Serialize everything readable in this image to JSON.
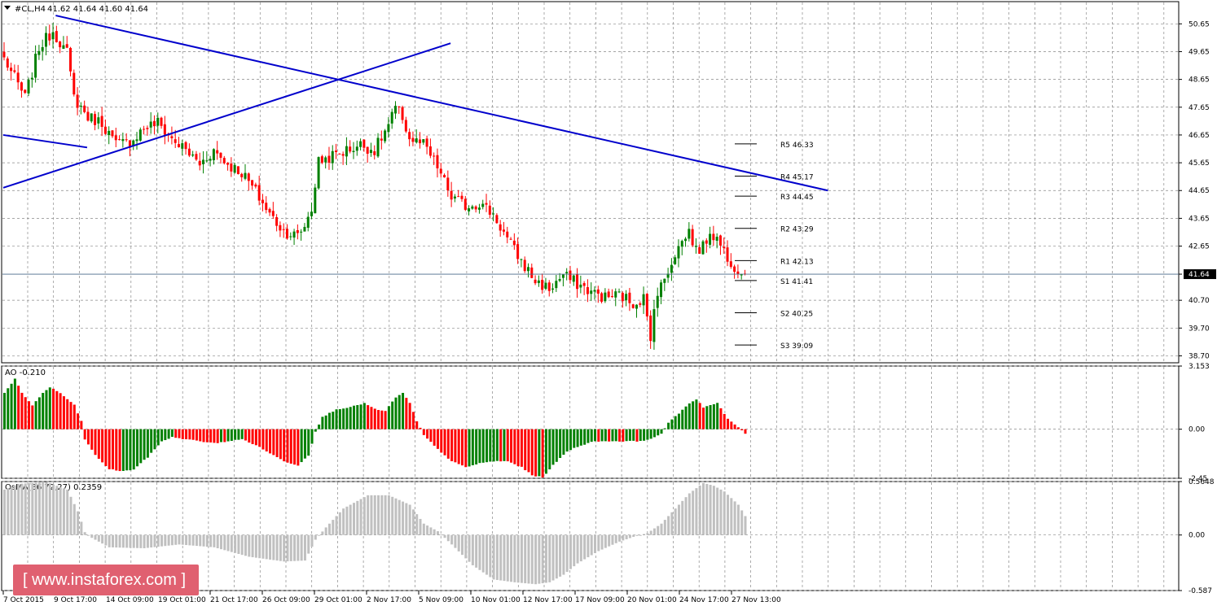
{
  "header": {
    "symbol": "#CL,H4",
    "ohlc": "41.62 41.64 41.60 41.64"
  },
  "watermark": "[ www.instaforex.com ]",
  "colors": {
    "bull": "#008000",
    "bear": "#ff0000",
    "trend": "#0000cc",
    "osma": "#c0c0c0",
    "grid": "#888888"
  },
  "chart_data": [
    {
      "type": "candlestick",
      "title": "#CL,H4",
      "ylim": [
        38.45,
        51.45
      ],
      "y_ticks": [
        "50.65",
        "49.65",
        "48.65",
        "47.65",
        "46.65",
        "45.65",
        "44.65",
        "43.65",
        "42.65",
        "41.64",
        "40.70",
        "39.70",
        "38.70"
      ],
      "current_price": "41.64",
      "x_labels": [
        "7 Oct 2015",
        "9 Oct 17:00",
        "14 Oct 09:00",
        "19 Oct 01:00",
        "21 Oct 17:00",
        "26 Oct 09:00",
        "29 Oct 01:00",
        "2 Nov 17:00",
        "5 Nov 09:00",
        "10 Nov 01:00",
        "12 Nov 17:00",
        "17 Nov 09:00",
        "20 Nov 01:00",
        "24 Nov 17:00",
        "27 Nov 13:00"
      ],
      "close_path": [
        [
          0,
          49.4
        ],
        [
          6,
          48.0
        ],
        [
          10,
          49.8
        ],
        [
          14,
          50.4
        ],
        [
          18,
          49.6
        ],
        [
          20,
          48.0
        ],
        [
          24,
          47.3
        ],
        [
          28,
          47.1
        ],
        [
          32,
          46.3
        ],
        [
          36,
          46.4
        ],
        [
          40,
          46.9
        ],
        [
          44,
          47.1
        ],
        [
          48,
          46.5
        ],
        [
          52,
          46.1
        ],
        [
          56,
          45.6
        ],
        [
          60,
          46.1
        ],
        [
          64,
          45.6
        ],
        [
          68,
          45.3
        ],
        [
          72,
          44.6
        ],
        [
          76,
          43.8
        ],
        [
          80,
          43.2
        ],
        [
          84,
          43.0
        ],
        [
          86,
          43.4
        ],
        [
          88,
          44.0
        ],
        [
          90,
          45.7
        ],
        [
          94,
          45.9
        ],
        [
          98,
          46.1
        ],
        [
          102,
          46.3
        ],
        [
          106,
          46.1
        ],
        [
          110,
          47.0
        ],
        [
          112,
          47.6
        ],
        [
          114,
          47.3
        ],
        [
          116,
          46.5
        ],
        [
          120,
          46.3
        ],
        [
          124,
          45.5
        ],
        [
          128,
          44.4
        ],
        [
          132,
          44.1
        ],
        [
          136,
          44.2
        ],
        [
          140,
          43.8
        ],
        [
          144,
          42.9
        ],
        [
          148,
          42.1
        ],
        [
          152,
          41.4
        ],
        [
          156,
          41.1
        ],
        [
          160,
          41.6
        ],
        [
          164,
          41.3
        ],
        [
          168,
          41.0
        ],
        [
          172,
          40.8
        ],
        [
          176,
          40.9
        ],
        [
          180,
          40.6
        ],
        [
          183,
          40.8
        ],
        [
          185,
          39.2
        ],
        [
          186,
          40.6
        ],
        [
          188,
          41.2
        ],
        [
          190,
          41.8
        ],
        [
          192,
          42.4
        ],
        [
          194,
          42.8
        ],
        [
          196,
          43.2
        ],
        [
          198,
          42.5
        ],
        [
          200,
          42.6
        ],
        [
          202,
          43.2
        ],
        [
          204,
          42.9
        ],
        [
          206,
          42.5
        ],
        [
          208,
          42.1
        ],
        [
          210,
          41.8
        ],
        [
          211,
          41.64
        ]
      ],
      "levels": [
        {
          "label": "R5",
          "value": "46.33"
        },
        {
          "label": "R4",
          "value": "45.17"
        },
        {
          "label": "R3",
          "value": "44.45"
        },
        {
          "label": "R2",
          "value": "43.29"
        },
        {
          "label": "R1",
          "value": "42.13"
        },
        {
          "label": "S1",
          "value": "41.41"
        },
        {
          "label": "S2",
          "value": "40.25"
        },
        {
          "label": "S3",
          "value": "39.09"
        }
      ],
      "trendlines": [
        {
          "from": [
            15,
            50.95
          ],
          "to": [
            236,
            44.65
          ]
        },
        {
          "from": [
            0,
            44.75
          ],
          "to": [
            128,
            49.95
          ]
        },
        {
          "from": [
            0,
            46.65
          ],
          "to": [
            24,
            46.2
          ]
        }
      ]
    },
    {
      "type": "bar",
      "title": "AO -0.210",
      "ylim": [
        -2.45,
        3.153
      ],
      "y_ticks": [
        "3.153",
        "0.00",
        "-2.45"
      ],
      "path": [
        [
          0,
          1.8
        ],
        [
          3,
          2.5
        ],
        [
          5,
          1.8
        ],
        [
          8,
          1.2
        ],
        [
          11,
          1.8
        ],
        [
          13,
          2.1
        ],
        [
          16,
          1.8
        ],
        [
          20,
          1.2
        ],
        [
          22,
          0.4
        ],
        [
          23,
          -0.5
        ],
        [
          26,
          -1.3
        ],
        [
          30,
          -2.0
        ],
        [
          34,
          -2.1
        ],
        [
          37,
          -2.0
        ],
        [
          41,
          -1.4
        ],
        [
          45,
          -0.6
        ],
        [
          48,
          -0.4
        ],
        [
          52,
          -0.5
        ],
        [
          56,
          -0.6
        ],
        [
          60,
          -0.7
        ],
        [
          64,
          -0.6
        ],
        [
          68,
          -0.5
        ],
        [
          72,
          -0.8
        ],
        [
          76,
          -1.2
        ],
        [
          80,
          -1.6
        ],
        [
          84,
          -1.8
        ],
        [
          87,
          -1.3
        ],
        [
          89,
          -0.1
        ],
        [
          91,
          0.6
        ],
        [
          95,
          1.0
        ],
        [
          99,
          1.1
        ],
        [
          103,
          1.3
        ],
        [
          106,
          1.0
        ],
        [
          109,
          0.9
        ],
        [
          112,
          1.6
        ],
        [
          114,
          1.8
        ],
        [
          116,
          1.3
        ],
        [
          118,
          0.4
        ],
        [
          120,
          -0.3
        ],
        [
          124,
          -1.0
        ],
        [
          128,
          -1.6
        ],
        [
          132,
          -1.9
        ],
        [
          136,
          -1.7
        ],
        [
          140,
          -1.6
        ],
        [
          144,
          -1.6
        ],
        [
          148,
          -1.9
        ],
        [
          151,
          -2.3
        ],
        [
          154,
          -2.4
        ],
        [
          157,
          -1.8
        ],
        [
          161,
          -1.1
        ],
        [
          165,
          -0.8
        ],
        [
          169,
          -0.6
        ],
        [
          173,
          -0.6
        ],
        [
          177,
          -0.6
        ],
        [
          181,
          -0.6
        ],
        [
          185,
          -0.5
        ],
        [
          188,
          -0.2
        ],
        [
          190,
          0.3
        ],
        [
          193,
          0.8
        ],
        [
          196,
          1.3
        ],
        [
          198,
          1.5
        ],
        [
          200,
          1.1
        ],
        [
          202,
          1.2
        ],
        [
          204,
          1.3
        ],
        [
          207,
          0.5
        ],
        [
          210,
          0.1
        ],
        [
          212,
          -0.21
        ]
      ]
    },
    {
      "type": "bar",
      "title": "OsMA(36,72,27) 0.2359",
      "ylim": [
        -0.587,
        0.5648
      ],
      "y_ticks": [
        "0.5648",
        "0.00",
        "-0.587"
      ],
      "path": [
        [
          0,
          0.48
        ],
        [
          4,
          0.54
        ],
        [
          12,
          0.56
        ],
        [
          18,
          0.48
        ],
        [
          21,
          0.25
        ],
        [
          23,
          0.03
        ],
        [
          25,
          -0.03
        ],
        [
          30,
          -0.13
        ],
        [
          40,
          -0.14
        ],
        [
          50,
          -0.1
        ],
        [
          60,
          -0.13
        ],
        [
          70,
          -0.23
        ],
        [
          80,
          -0.28
        ],
        [
          86,
          -0.27
        ],
        [
          89,
          -0.05
        ],
        [
          92,
          0.08
        ],
        [
          97,
          0.28
        ],
        [
          104,
          0.42
        ],
        [
          110,
          0.42
        ],
        [
          116,
          0.32
        ],
        [
          120,
          0.12
        ],
        [
          124,
          0.04
        ],
        [
          128,
          -0.1
        ],
        [
          134,
          -0.32
        ],
        [
          140,
          -0.47
        ],
        [
          146,
          -0.5
        ],
        [
          152,
          -0.52
        ],
        [
          156,
          -0.5
        ],
        [
          160,
          -0.42
        ],
        [
          164,
          -0.3
        ],
        [
          170,
          -0.17
        ],
        [
          176,
          -0.07
        ],
        [
          180,
          -0.02
        ],
        [
          184,
          0.02
        ],
        [
          188,
          0.12
        ],
        [
          192,
          0.28
        ],
        [
          196,
          0.44
        ],
        [
          200,
          0.55
        ],
        [
          203,
          0.52
        ],
        [
          206,
          0.46
        ],
        [
          210,
          0.32
        ],
        [
          212,
          0.2
        ]
      ]
    }
  ]
}
